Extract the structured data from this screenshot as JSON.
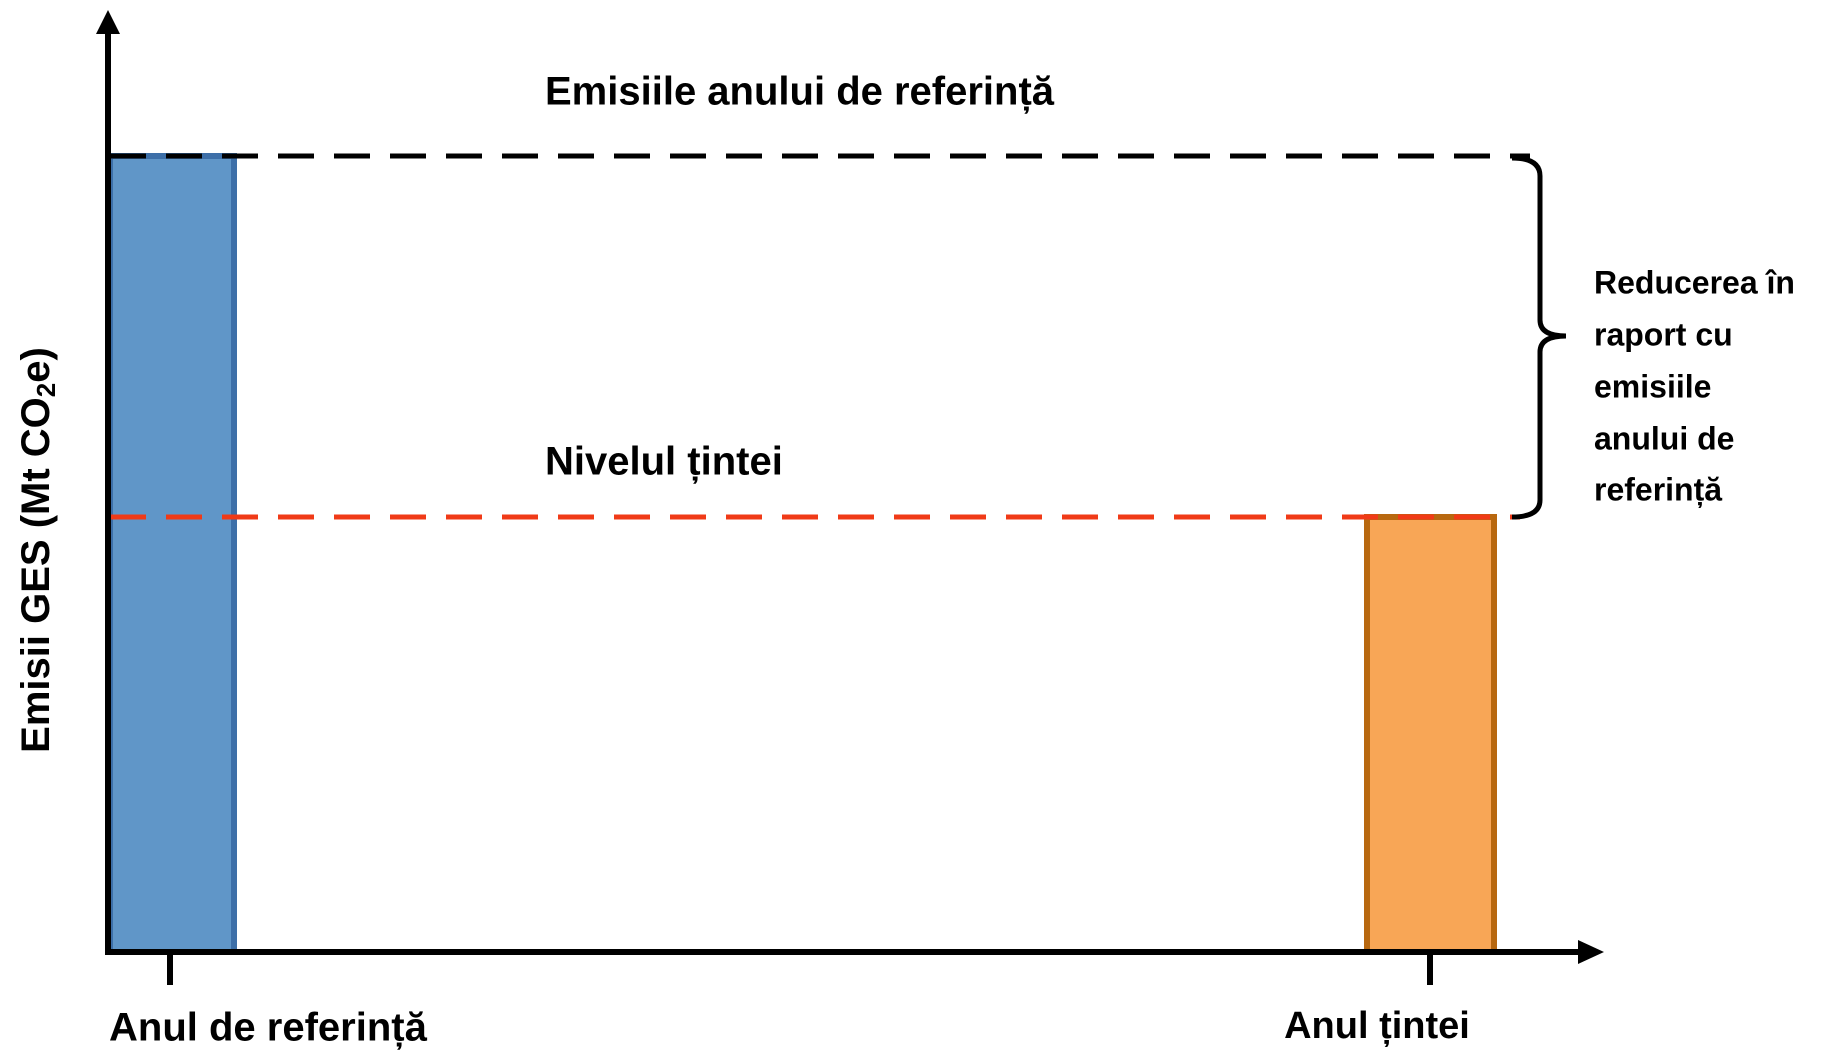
{
  "y_axis": {
    "label": {
      "text_before": "Emisii GES (Mt CO",
      "subscript": "2",
      "text_after": "e)"
    }
  },
  "reference_line": {
    "label": "Emisiile anului de referință"
  },
  "target_line": {
    "label": "Nivelul țintei"
  },
  "reduction": {
    "lines": [
      "Reducerea în",
      "raport cu",
      "emisiile",
      "anului de",
      "referință"
    ]
  },
  "bars": [
    {
      "label": "Anul de referință"
    },
    {
      "label": "Anul țintei"
    }
  ]
}
